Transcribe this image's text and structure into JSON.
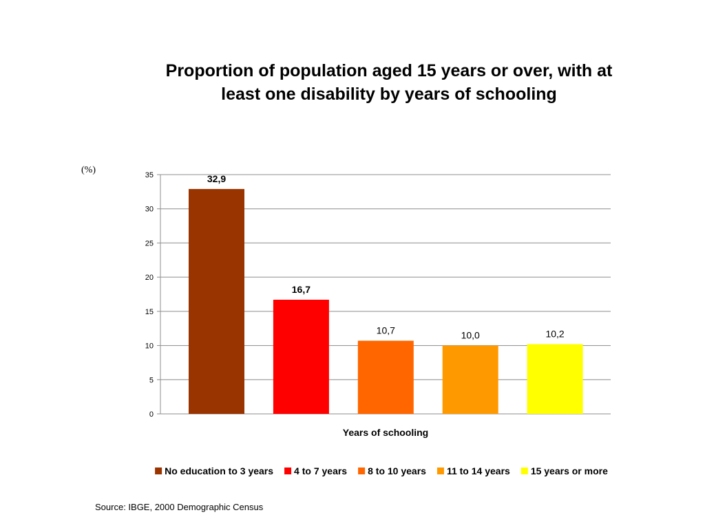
{
  "title_line1": "Proportion of population aged 15 years or over, with at",
  "title_line2": "least one disability by years of schooling",
  "unit_label": "(%)",
  "source": "Source: IBGE, 2000 Demographic Census",
  "chart_data": {
    "type": "bar",
    "title": "Proportion of population aged 15 years or over, with at least one disability by years of schooling",
    "xlabel": "Years of schooling",
    "ylabel": "(%)",
    "ylim": [
      0,
      35
    ],
    "yticks": [
      0,
      5,
      10,
      15,
      20,
      25,
      30,
      35
    ],
    "grid": true,
    "legend": "bottom",
    "categories": [
      "No education to 3 years",
      "4 to 7 years",
      "8 to 10 years",
      "11 to 14 years",
      "15 years or more"
    ],
    "values": [
      32.9,
      16.7,
      10.7,
      10.0,
      10.2
    ],
    "data_labels": [
      "32,9",
      "16,7",
      "10,7",
      "10,0",
      "10,2"
    ],
    "label_bold": [
      true,
      true,
      false,
      false,
      false
    ],
    "colors": [
      "#993300",
      "#FF0000",
      "#FF6600",
      "#FF9900",
      "#FFFF00"
    ]
  }
}
